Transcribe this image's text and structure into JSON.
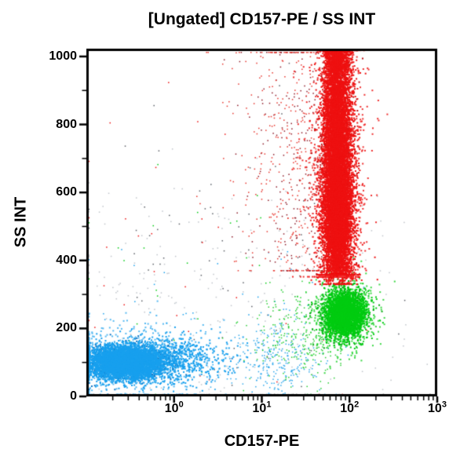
{
  "seed": 1337,
  "title": "[Ungated] CD157-PE / SS INT",
  "chart_data": {
    "type": "scatter",
    "title": "[Ungated] CD157-PE / SS INT",
    "xlabel": "CD157-PE",
    "ylabel": "SS INT",
    "xscale": "log",
    "yscale": "linear",
    "xlim": [
      0.1,
      1000
    ],
    "ylim": [
      0,
      1023
    ],
    "grid": false,
    "legend": false,
    "background": "#FFFFFF",
    "frame_color": "#000000",
    "x_major_ticks": [
      {
        "base": "10",
        "exp": 0
      },
      {
        "base": "10",
        "exp": 1
      },
      {
        "base": "10",
        "exp": 2
      },
      {
        "base": "10",
        "exp": 3
      }
    ],
    "x_minor_decades": [
      -1,
      0,
      1,
      2
    ],
    "y_major_ticks": [
      0,
      200,
      400,
      600,
      800,
      1000
    ],
    "y_minor_ticks": [
      100,
      300,
      500,
      700,
      900
    ],
    "populations": [
      {
        "name": "debris-gray-light",
        "color": "#C0C5CB",
        "count": 280,
        "logx_mean": 0.7,
        "logx_sd": 1.1,
        "y_mean": 260,
        "y_sd": 190,
        "dot": 1.5
      },
      {
        "name": "debris-gray-dark",
        "color": "#5A5F66",
        "count": 80,
        "logx_mean": 0.9,
        "logx_sd": 1.0,
        "y_mean": 330,
        "y_sd": 250,
        "dot": 1.5
      },
      {
        "name": "stray-blue",
        "color": "#18A0EE",
        "count": 60,
        "logx_mean": 0.4,
        "logx_sd": 0.9,
        "y_mean": 180,
        "y_sd": 130,
        "dot": 1.5
      },
      {
        "name": "stray-red",
        "color": "#EE1111",
        "count": 45,
        "logx_mean": 0.4,
        "logx_sd": 1.0,
        "y_mean": 350,
        "y_sd": 260,
        "dot": 1.5
      },
      {
        "name": "stray-green",
        "color": "#00CC11",
        "count": 30,
        "logx_mean": 0.2,
        "logx_sd": 1.0,
        "y_mean": 280,
        "y_sd": 220,
        "dot": 1.5
      },
      {
        "name": "lymph-blue-halo",
        "color": "#55B9F2",
        "count": 500,
        "logx_mean": -0.5,
        "logx_sd": 0.45,
        "y_mean": 105,
        "y_sd": 58,
        "dot": 2
      },
      {
        "name": "lymph-blue-tail",
        "color": "#18A0EE",
        "count": 850,
        "logx_mean": -0.05,
        "logx_sd": 0.35,
        "y_mean": 108,
        "y_sd": 34,
        "dot": 2
      },
      {
        "name": "lymph-blue-spray",
        "color": "#2FA8EC",
        "count": 260,
        "logx_mean": 1.15,
        "logx_sd": 0.26,
        "y_mean": 118,
        "y_sd": 50,
        "dot": 1.5
      },
      {
        "name": "lymph-blue-dark",
        "color": "#0E74C4",
        "count": 650,
        "logx_mean": -0.56,
        "logx_sd": 0.24,
        "y_mean": 100,
        "y_sd": 27,
        "dot": 2
      },
      {
        "name": "lymph-blue-core",
        "color": "#18A0EE",
        "count": 5200,
        "logx_mean": -0.56,
        "logx_sd": 0.21,
        "y_mean": 100,
        "y_sd": 23,
        "dot": 2
      },
      {
        "name": "mono-green-tail",
        "color": "#27CE33",
        "count": 300,
        "logx_mean": 1.5,
        "logx_sd": 0.34,
        "y_mean": 175,
        "y_sd": 60,
        "logx_max": 1.9,
        "dot": 1.5
      },
      {
        "name": "mono-green-halo",
        "color": "#3CD946",
        "count": 480,
        "logx_mean": 1.92,
        "logx_sd": 0.2,
        "y_mean": 238,
        "y_sd": 60,
        "dot": 2
      },
      {
        "name": "mono-green-dark",
        "color": "#00A80D",
        "count": 520,
        "logx_mean": 1.95,
        "logx_sd": 0.13,
        "y_mean": 242,
        "y_sd": 38,
        "dot": 2
      },
      {
        "name": "mono-green-core",
        "color": "#00CC11",
        "count": 2700,
        "logx_mean": 1.95,
        "logx_sd": 0.115,
        "y_mean": 243,
        "y_sd": 34,
        "y_max": 332,
        "dot": 2
      },
      {
        "name": "gran-red-left-dark",
        "color": "#8E1A28",
        "count": 300,
        "logx_mean": 1.5,
        "logx_sd": 0.34,
        "y_mean": 700,
        "y_sd": 240,
        "y_min": 370,
        "y_max": 1012,
        "logx_max": 1.76,
        "dot": 1.5
      },
      {
        "name": "gran-red-left-spray",
        "color": "#E8342C",
        "count": 430,
        "logx_mean": 1.38,
        "logx_sd": 0.36,
        "y_mean": 690,
        "y_sd": 235,
        "y_min": 370,
        "y_max": 1012,
        "logx_max": 1.74,
        "dot": 1.5
      },
      {
        "name": "gran-red-halo",
        "color": "#F03030",
        "count": 1400,
        "logx_mean": 1.865,
        "logx_sd": 0.155,
        "y_mean": 640,
        "y_sd": 215,
        "y_min": 352,
        "y_max": 1018,
        "dot": 2
      },
      {
        "name": "gran-red-texture",
        "color": "#BC0F12",
        "count": 900,
        "logx_mean": 1.865,
        "logx_sd": 0.1,
        "y_mean": 650,
        "y_sd": 205,
        "y_min": 358,
        "y_max": 1018,
        "dot": 2
      },
      {
        "name": "gran-red-bottom",
        "color": "#EE1111",
        "count": 300,
        "logx_mean": 1.88,
        "logx_sd": 0.12,
        "y_mean": 365,
        "y_sd": 28,
        "y_min": 330,
        "dot": 2
      },
      {
        "name": "gran-red-core-low",
        "color": "#EE1111",
        "count": 6200,
        "logx_mean": 1.865,
        "logx_sd": 0.085,
        "y_mean": 545,
        "y_sd": 108,
        "y_min": 358,
        "dot": 2
      },
      {
        "name": "gran-red-core-high",
        "color": "#EE1111",
        "count": 4300,
        "logx_mean": 1.858,
        "logx_sd": 0.08,
        "y_mean": 828,
        "y_sd": 118,
        "y_max": 1018,
        "dot": 2
      },
      {
        "name": "gran-red-top-pile",
        "color": "#EE1111",
        "count": 800,
        "logx_mean": 1.858,
        "logx_sd": 0.07,
        "y_mean": 1002,
        "y_sd": 30,
        "y_max": 1018,
        "dot": 2
      }
    ]
  }
}
